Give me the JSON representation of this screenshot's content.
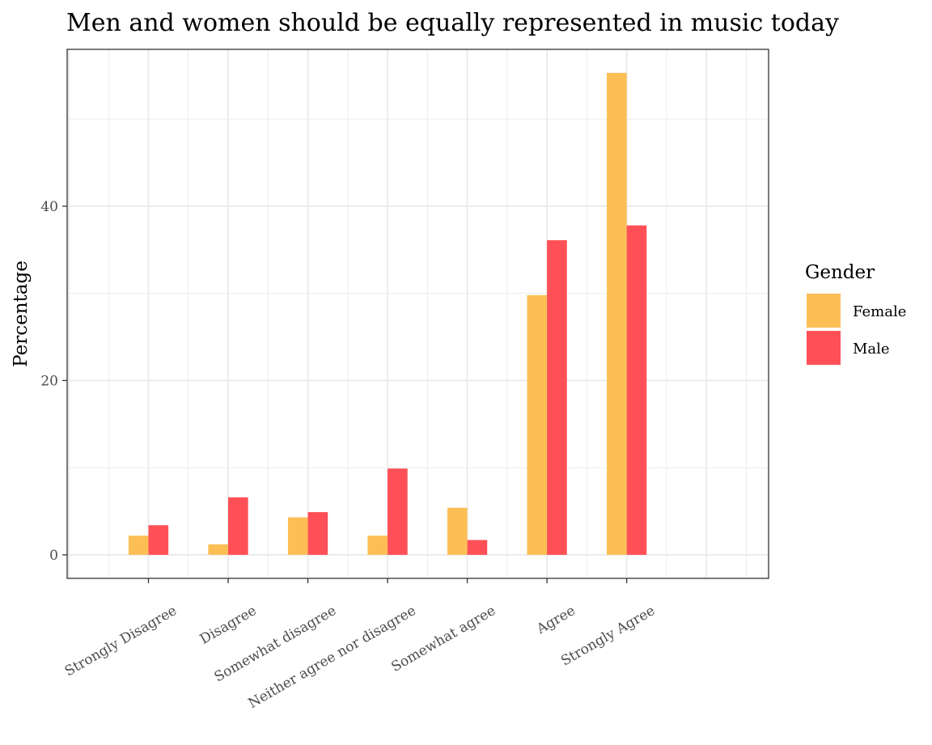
{
  "chart_data": {
    "type": "bar",
    "title": "Men and women should be equally represented in music today",
    "xlabel": "",
    "ylabel": "Percentage",
    "categories": [
      "Strongly Disagree",
      "Disagree",
      "Somewhat disagree",
      "Neither agree nor disagree",
      "Somewhat agree",
      "Agree",
      "Strongly Agree"
    ],
    "series": [
      {
        "name": "Female",
        "color": "#FDBF55",
        "values": [
          2.2,
          1.2,
          4.3,
          2.2,
          5.4,
          29.8,
          55.3
        ]
      },
      {
        "name": "Male",
        "color": "#FF5057",
        "values": [
          3.4,
          6.6,
          4.9,
          9.9,
          1.7,
          36.1,
          37.8
        ]
      }
    ],
    "ylim": [
      -2.7,
      58
    ],
    "yticks": [
      0,
      20,
      40
    ],
    "y_minor_ticks": [
      10,
      30,
      50
    ],
    "grid": true,
    "legend": {
      "title": "Gender",
      "position": "right"
    }
  }
}
